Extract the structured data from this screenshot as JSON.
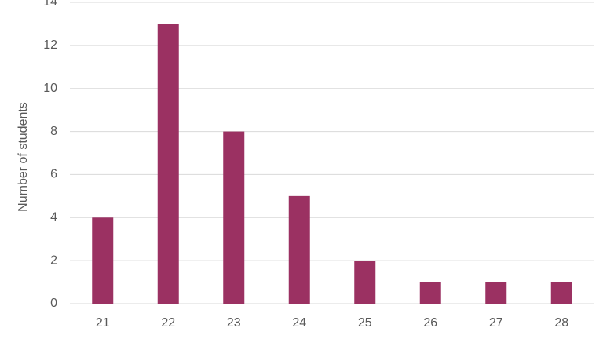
{
  "chart_data": {
    "type": "bar",
    "y_label": "Number of students",
    "categories": [
      "21",
      "22",
      "23",
      "24",
      "25",
      "26",
      "27",
      "28"
    ],
    "values": [
      4,
      13,
      8,
      5,
      2,
      1,
      1,
      1
    ],
    "color": "#9b3162",
    "ylim": [
      0,
      14
    ],
    "yticks": [
      0,
      2,
      4,
      6,
      8,
      10,
      12,
      14
    ],
    "grid": true
  }
}
